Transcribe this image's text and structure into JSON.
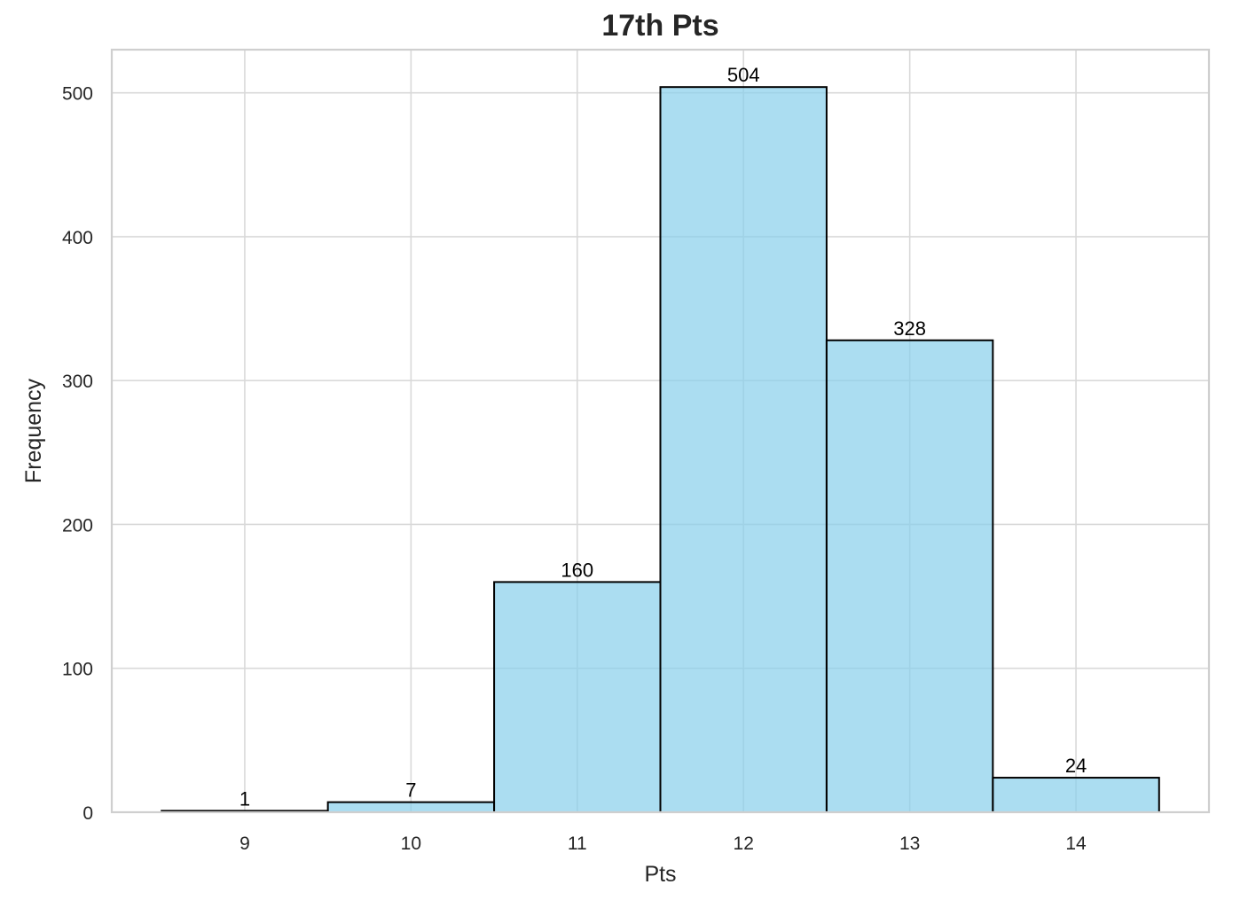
{
  "chart_data": {
    "type": "bar",
    "title": "17th Pts",
    "xlabel": "Pts",
    "ylabel": "Frequency",
    "categories": [
      "9",
      "10",
      "11",
      "12",
      "13",
      "14"
    ],
    "x": [
      9,
      10,
      11,
      12,
      13,
      14
    ],
    "values": [
      1,
      7,
      160,
      504,
      328,
      24
    ],
    "data_labels": [
      "1",
      "7",
      "160",
      "504",
      "328",
      "24"
    ],
    "xlim": [
      8.2,
      14.8
    ],
    "ylim": [
      0,
      530
    ],
    "yticks": [
      0,
      100,
      200,
      300,
      400,
      500
    ],
    "ytick_labels": [
      "0",
      "100",
      "200",
      "300",
      "400",
      "500"
    ],
    "grid": true,
    "legend": "none",
    "colors": {
      "bar_fill": "#87ceeb",
      "bar_opacity": 0.7,
      "bar_edge": "#000000",
      "grid": "#d9d9d9",
      "frame": "#cfcfcf",
      "text": "#262626"
    }
  }
}
